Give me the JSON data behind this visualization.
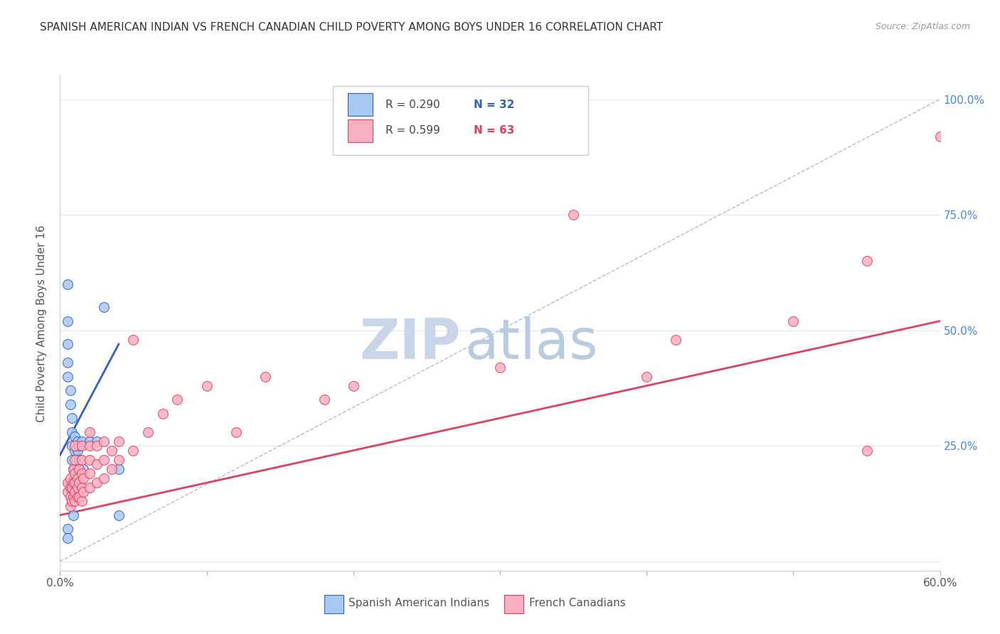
{
  "title": "SPANISH AMERICAN INDIAN VS FRENCH CANADIAN CHILD POVERTY AMONG BOYS UNDER 16 CORRELATION CHART",
  "source": "Source: ZipAtlas.com",
  "ylabel": "Child Poverty Among Boys Under 16",
  "legend_label1": "Spanish American Indians",
  "legend_label2": "French Canadians",
  "r1": "0.290",
  "n1": "32",
  "r2": "0.599",
  "n2": "63",
  "xmin": 0.0,
  "xmax": 0.6,
  "ymin": -0.02,
  "ymax": 1.05,
  "xticks": [
    0.0,
    0.1,
    0.2,
    0.3,
    0.4,
    0.5,
    0.6
  ],
  "xticklabels": [
    "0.0%",
    "",
    "",
    "",
    "",
    "",
    "60.0%"
  ],
  "yticks_right": [
    0.0,
    0.25,
    0.5,
    0.75,
    1.0
  ],
  "ytick_right_labels": [
    "",
    "25.0%",
    "50.0%",
    "75.0%",
    "100.0%"
  ],
  "color_blue": "#a8c8f0",
  "color_pink": "#f8b0c0",
  "color_blue_line": "#3060c0",
  "color_pink_line": "#e04060",
  "color_diag": "#b0bcd0",
  "color_right_axis": "#4488dd",
  "watermark_zip_color": "#c8d4e8",
  "watermark_atlas_color": "#b8cce0",
  "blue_x": [
    0.005,
    0.005,
    0.005,
    0.005,
    0.005,
    0.007,
    0.007,
    0.008,
    0.008,
    0.008,
    0.008,
    0.009,
    0.009,
    0.009,
    0.01,
    0.01,
    0.01,
    0.01,
    0.012,
    0.012,
    0.012,
    0.013,
    0.013,
    0.015,
    0.016,
    0.02,
    0.025,
    0.03,
    0.005,
    0.005,
    0.04,
    0.04
  ],
  "blue_y": [
    0.6,
    0.52,
    0.47,
    0.43,
    0.4,
    0.37,
    0.34,
    0.31,
    0.28,
    0.25,
    0.22,
    0.2,
    0.17,
    0.1,
    0.27,
    0.24,
    0.2,
    0.15,
    0.26,
    0.24,
    0.2,
    0.25,
    0.22,
    0.26,
    0.2,
    0.26,
    0.26,
    0.55,
    0.07,
    0.05,
    0.2,
    0.1
  ],
  "pink_x": [
    0.005,
    0.005,
    0.007,
    0.007,
    0.007,
    0.007,
    0.008,
    0.008,
    0.009,
    0.009,
    0.009,
    0.01,
    0.01,
    0.01,
    0.01,
    0.01,
    0.01,
    0.012,
    0.012,
    0.012,
    0.013,
    0.013,
    0.013,
    0.015,
    0.015,
    0.015,
    0.015,
    0.015,
    0.016,
    0.016,
    0.02,
    0.02,
    0.02,
    0.02,
    0.02,
    0.025,
    0.025,
    0.025,
    0.03,
    0.03,
    0.03,
    0.035,
    0.035,
    0.04,
    0.04,
    0.05,
    0.05,
    0.06,
    0.07,
    0.08,
    0.1,
    0.12,
    0.14,
    0.18,
    0.2,
    0.3,
    0.35,
    0.4,
    0.42,
    0.5,
    0.55,
    0.55,
    0.6
  ],
  "pink_y": [
    0.15,
    0.17,
    0.12,
    0.14,
    0.16,
    0.18,
    0.13,
    0.16,
    0.14,
    0.17,
    0.2,
    0.13,
    0.15,
    0.17,
    0.19,
    0.22,
    0.25,
    0.14,
    0.16,
    0.18,
    0.14,
    0.17,
    0.2,
    0.13,
    0.16,
    0.19,
    0.22,
    0.25,
    0.15,
    0.18,
    0.16,
    0.19,
    0.22,
    0.25,
    0.28,
    0.17,
    0.21,
    0.25,
    0.18,
    0.22,
    0.26,
    0.2,
    0.24,
    0.22,
    0.26,
    0.24,
    0.48,
    0.28,
    0.32,
    0.35,
    0.38,
    0.28,
    0.4,
    0.35,
    0.38,
    0.42,
    0.75,
    0.4,
    0.48,
    0.52,
    0.65,
    0.24,
    0.92
  ],
  "blue_line_x": [
    0.0,
    0.04
  ],
  "blue_line_y": [
    0.23,
    0.47
  ],
  "pink_line_x": [
    0.0,
    0.6
  ],
  "pink_line_y": [
    0.1,
    0.52
  ],
  "diag_line_x": [
    0.0,
    0.6
  ],
  "diag_line_y": [
    0.0,
    1.0
  ],
  "grid_color": "#e8e8e8",
  "bg_color": "#ffffff"
}
